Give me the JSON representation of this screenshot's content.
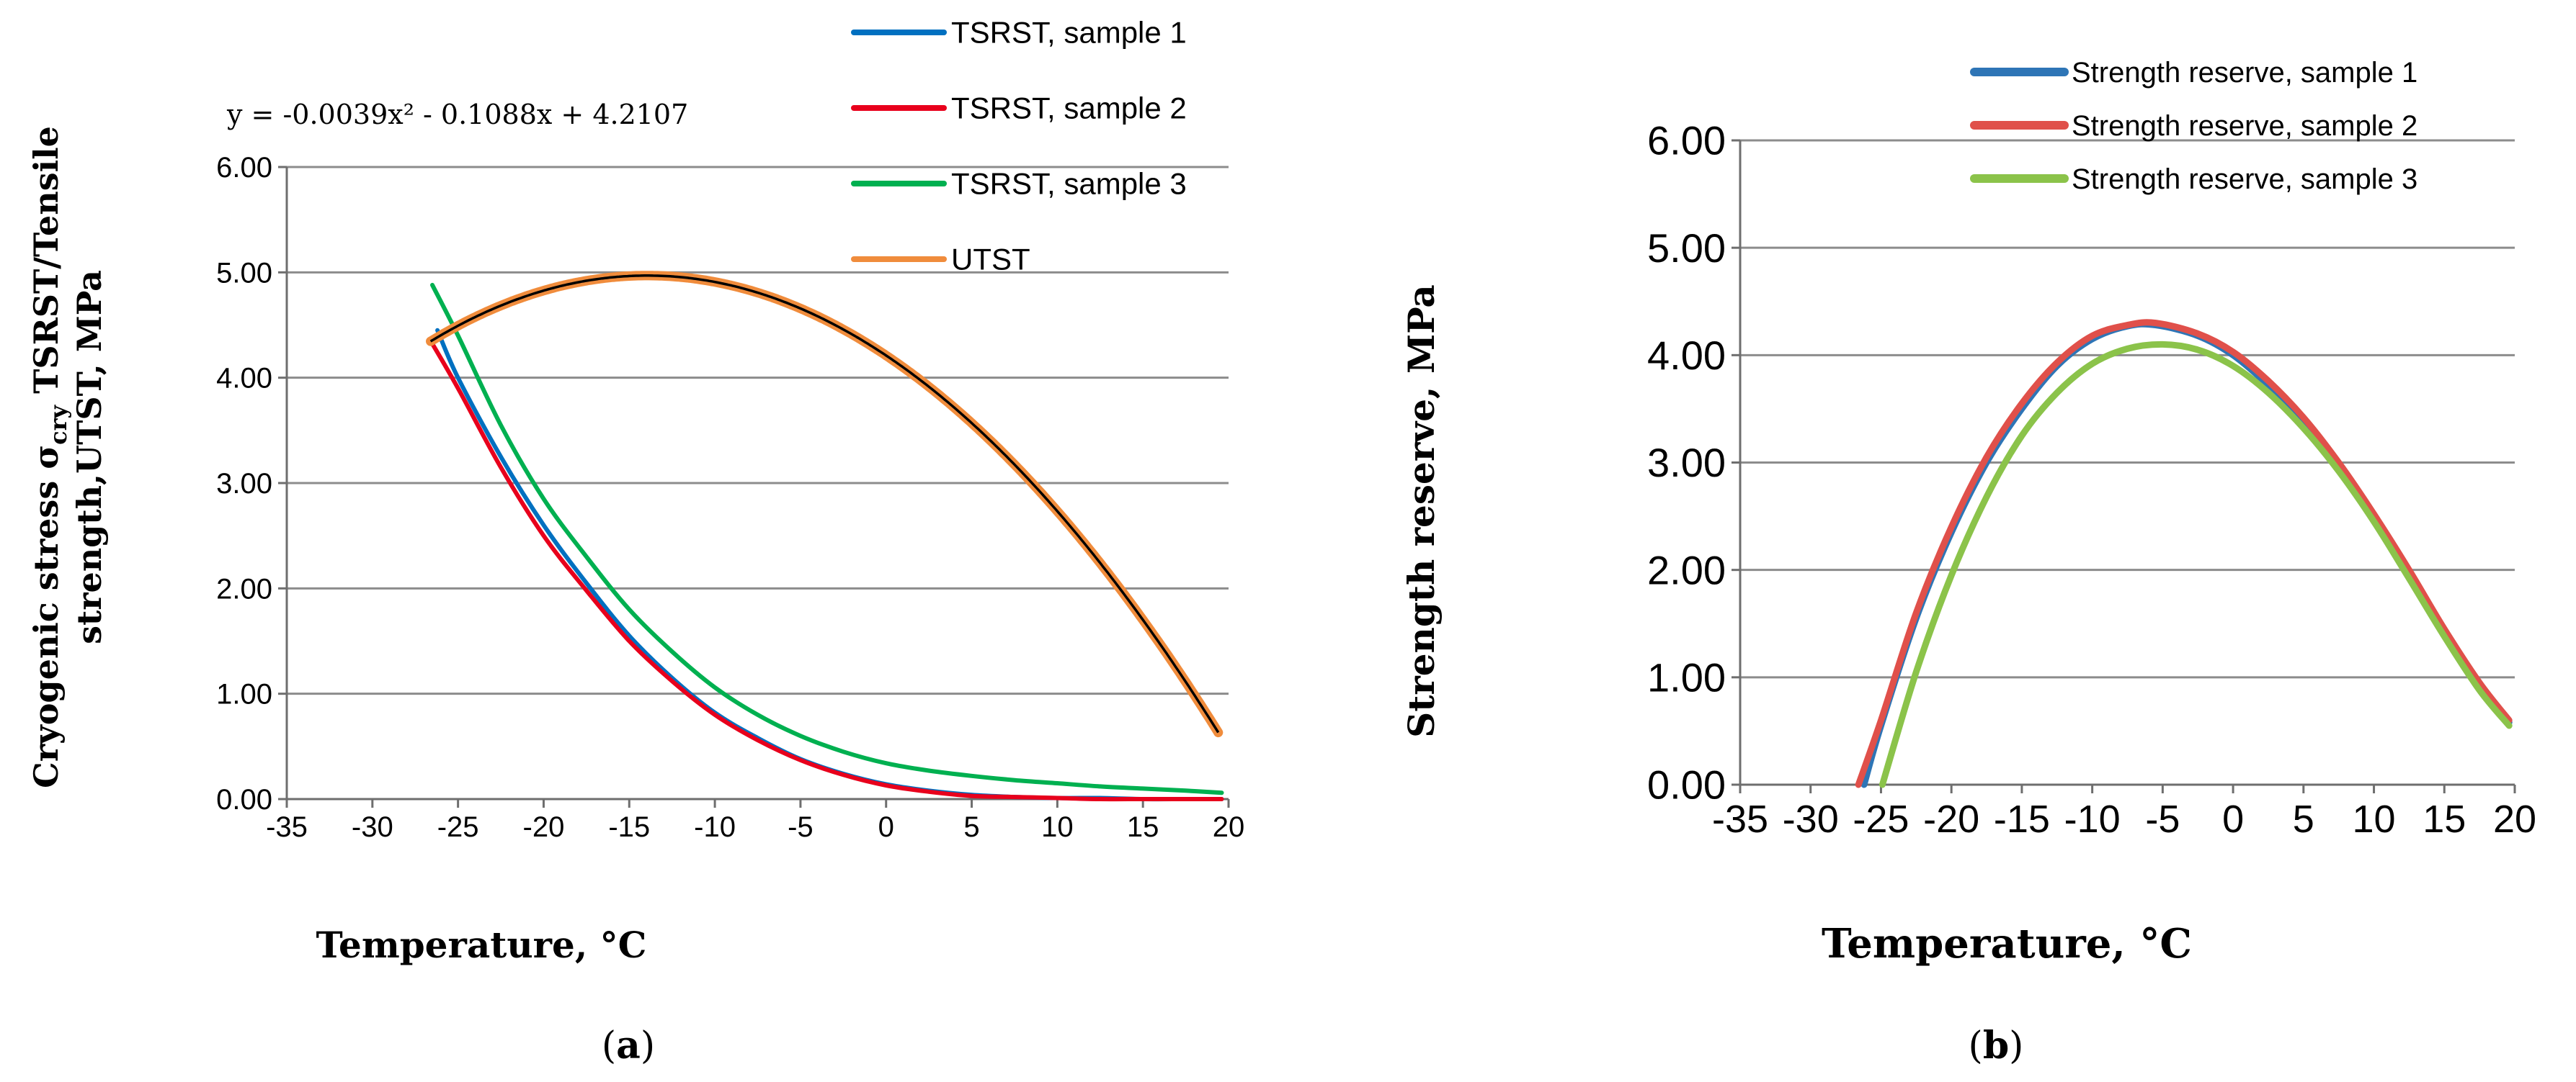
{
  "chart_data": [
    {
      "panel": "a",
      "panel_label": "a",
      "type": "line",
      "xlabel": "Temperature, °C",
      "ylabel_line1_prefix": "Cryogenic stress σ",
      "ylabel_line1_sub": "cry",
      "ylabel_line1_suffix": " TSRST/Tensile",
      "ylabel_line2": "strength,UTST, MPa",
      "equation": "y = -0.0039x² - 0.1088x + 4.2107",
      "xlim": [
        -35,
        20
      ],
      "ylim": [
        0,
        6
      ],
      "x_ticks": [
        "-35",
        "-30",
        "-25",
        "-20",
        "-15",
        "-10",
        "-5",
        "0",
        "5",
        "10",
        "15",
        "20"
      ],
      "y_ticks": [
        "0.00",
        "1.00",
        "2.00",
        "3.00",
        "4.00",
        "5.00",
        "6.00"
      ],
      "legend_position": "top-right (outside plot)",
      "series": [
        {
          "name": "TSRST, sample 1",
          "color": "#0070C0",
          "x": [
            -26.2,
            -25,
            -22.5,
            -20,
            -17.5,
            -15,
            -12.5,
            -10,
            -7.5,
            -5,
            -2.5,
            0,
            2.5,
            5,
            7.5,
            10,
            12.5,
            15,
            17.5,
            19.6
          ],
          "y": [
            4.45,
            4.0,
            3.25,
            2.6,
            2.05,
            1.55,
            1.15,
            0.82,
            0.58,
            0.38,
            0.24,
            0.14,
            0.08,
            0.04,
            0.02,
            0.01,
            0.01,
            0.0,
            0.0,
            0.0
          ]
        },
        {
          "name": "TSRST, sample 2",
          "color": "#E8001C",
          "x": [
            -26.6,
            -25,
            -22.5,
            -20,
            -17.5,
            -15,
            -12.5,
            -10,
            -7.5,
            -5,
            -2.5,
            0,
            2.5,
            5,
            7.5,
            10,
            12.5,
            15,
            17.5,
            19.6
          ],
          "y": [
            4.35,
            3.9,
            3.15,
            2.5,
            1.98,
            1.5,
            1.12,
            0.8,
            0.56,
            0.37,
            0.23,
            0.13,
            0.07,
            0.03,
            0.02,
            0.01,
            0.0,
            0.0,
            0.0,
            0.0
          ]
        },
        {
          "name": "TSRST, sample 3",
          "color": "#00B050",
          "x": [
            -26.5,
            -25,
            -22.5,
            -20,
            -17.5,
            -15,
            -12.5,
            -10,
            -7.5,
            -5,
            -2.5,
            0,
            2.5,
            5,
            7.5,
            10,
            12.5,
            15,
            17.5,
            19.6
          ],
          "y": [
            4.88,
            4.4,
            3.55,
            2.85,
            2.3,
            1.8,
            1.4,
            1.06,
            0.8,
            0.6,
            0.45,
            0.34,
            0.27,
            0.22,
            0.18,
            0.15,
            0.12,
            0.1,
            0.08,
            0.06
          ]
        },
        {
          "name": "UTST",
          "color": "#F08C3C",
          "fit": "quadratic",
          "coef": [
            -0.0039,
            -0.1088,
            4.2107
          ],
          "x_range": [
            -26.6,
            19.6
          ]
        }
      ]
    },
    {
      "panel": "b",
      "panel_label": "b",
      "type": "line",
      "xlabel": "Temperature, °C",
      "ylabel": "Strength reserve, MPa",
      "xlim": [
        -35,
        20
      ],
      "ylim": [
        0,
        6
      ],
      "x_ticks": [
        "-35",
        "-30",
        "-25",
        "-20",
        "-15",
        "-10",
        "-5",
        "0",
        "5",
        "10",
        "15",
        "20"
      ],
      "y_ticks": [
        "0.00",
        "1.00",
        "2.00",
        "3.00",
        "4.00",
        "5.00",
        "6.00"
      ],
      "legend_position": "top-right (outside plot)",
      "series": [
        {
          "name": "Strength reserve, sample 1",
          "color": "#2E75B6",
          "x": [
            -26.2,
            -25,
            -22.5,
            -20,
            -17.5,
            -15,
            -12.5,
            -10,
            -7.5,
            -5.5,
            -2.5,
            0,
            2.5,
            5,
            7.5,
            10,
            12.5,
            15,
            17.5,
            19.6
          ],
          "y": [
            0.0,
            0.55,
            1.55,
            2.35,
            3.0,
            3.5,
            3.9,
            4.15,
            4.27,
            4.28,
            4.18,
            4.0,
            3.72,
            3.38,
            2.95,
            2.47,
            1.95,
            1.4,
            0.9,
            0.58
          ]
        },
        {
          "name": "Strength reserve, sample 2",
          "color": "#E0504A",
          "x": [
            -26.6,
            -25,
            -22.5,
            -20,
            -17.5,
            -15,
            -12.5,
            -10,
            -7.5,
            -5.5,
            -2.5,
            0,
            2.5,
            5,
            7.5,
            10,
            12.5,
            15,
            17.5,
            19.6
          ],
          "y": [
            0.0,
            0.6,
            1.6,
            2.4,
            3.05,
            3.55,
            3.93,
            4.18,
            4.28,
            4.3,
            4.2,
            4.03,
            3.76,
            3.42,
            3.0,
            2.52,
            2.0,
            1.45,
            0.95,
            0.6
          ]
        },
        {
          "name": "Strength reserve, sample 3",
          "color": "#8BC34A",
          "x": [
            -24.9,
            -22.5,
            -20,
            -17.5,
            -15,
            -12.5,
            -10,
            -7.5,
            -5,
            -2.5,
            0,
            2.5,
            5,
            7.5,
            10,
            12.5,
            15,
            17.5,
            19.6
          ],
          "y": [
            0.0,
            1.05,
            1.95,
            2.68,
            3.25,
            3.65,
            3.92,
            4.06,
            4.1,
            4.05,
            3.9,
            3.65,
            3.32,
            2.92,
            2.45,
            1.92,
            1.38,
            0.88,
            0.55
          ]
        }
      ]
    }
  ]
}
